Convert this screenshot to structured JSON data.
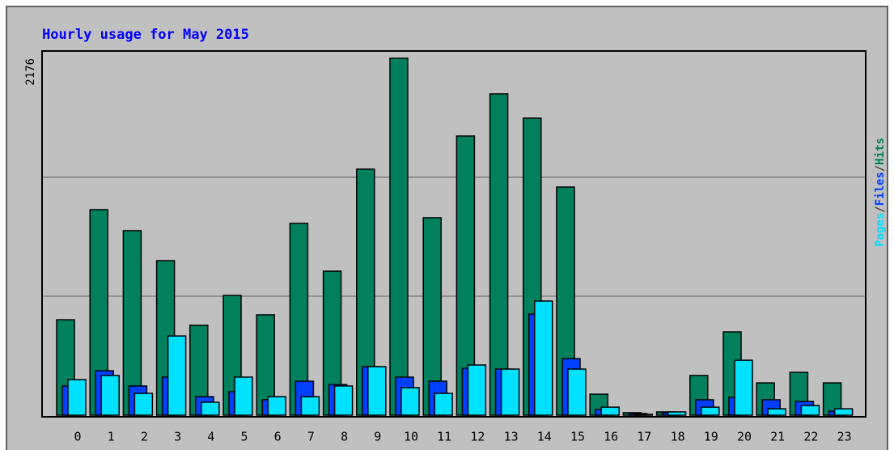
{
  "chart_data": {
    "type": "bar",
    "title": "Hourly usage for May 2015",
    "categories": [
      "0",
      "1",
      "2",
      "3",
      "4",
      "5",
      "6",
      "7",
      "8",
      "9",
      "10",
      "11",
      "12",
      "13",
      "14",
      "15",
      "16",
      "17",
      "18",
      "19",
      "20",
      "21",
      "22",
      "23"
    ],
    "series": [
      {
        "name": "Hits",
        "color": "#00805c",
        "values": [
          582,
          1253,
          1125,
          942,
          548,
          730,
          612,
          1169,
          878,
          1500,
          2176,
          1204,
          1702,
          1959,
          1811,
          1391,
          128,
          15,
          20,
          242,
          508,
          197,
          261,
          197
        ]
      },
      {
        "name": "Files",
        "color": "#0040ff",
        "values": [
          178,
          271,
          178,
          232,
          113,
          143,
          94,
          207,
          187,
          296,
          232,
          207,
          286,
          281,
          617,
          345,
          35,
          10,
          15,
          94,
          109,
          94,
          84,
          25
        ]
      },
      {
        "name": "Pages",
        "color": "#00e0ff",
        "values": [
          217,
          242,
          133,
          483,
          79,
          232,
          113,
          113,
          178,
          296,
          168,
          133,
          306,
          281,
          696,
          281,
          49,
          5,
          20,
          49,
          335,
          39,
          59,
          39
        ]
      }
    ],
    "legend_separator": "/",
    "ylim": [
      0,
      2176
    ],
    "yticks": [
      {
        "value": 725.3,
        "label": null
      },
      {
        "value": 1450.7,
        "label": null
      },
      2176
    ],
    "grid": true
  }
}
